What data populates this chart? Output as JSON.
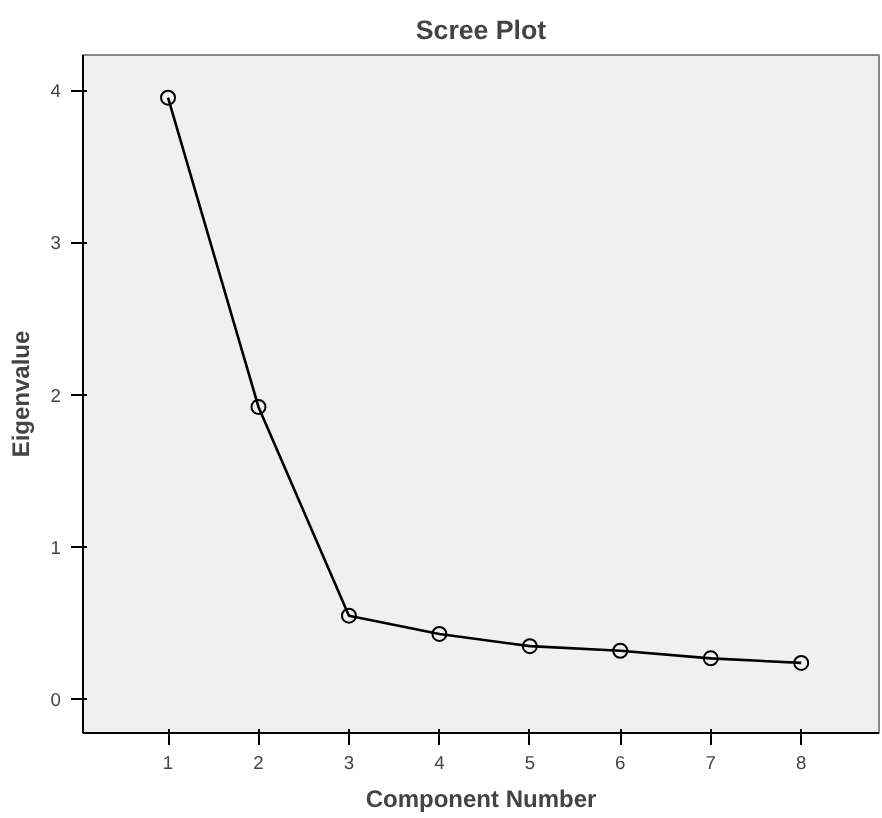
{
  "chart_data": {
    "type": "line",
    "title": "Scree Plot",
    "xlabel": "Component Number",
    "ylabel": "Eigenvalue",
    "x": [
      1,
      2,
      3,
      4,
      5,
      6,
      7,
      8
    ],
    "series": [
      {
        "color": "#000000",
        "values": [
          3.95,
          1.92,
          0.55,
          0.43,
          0.35,
          0.32,
          0.27,
          0.24
        ]
      }
    ],
    "xlim": [
      0.06,
      8.86
    ],
    "ylim": [
      -0.22,
      4.23
    ],
    "xticks": [
      1,
      2,
      3,
      4,
      5,
      6,
      7,
      8
    ],
    "yticks": [
      0,
      1,
      2,
      3,
      4
    ],
    "grid": false,
    "marker": "circle",
    "line_style": "solid"
  }
}
